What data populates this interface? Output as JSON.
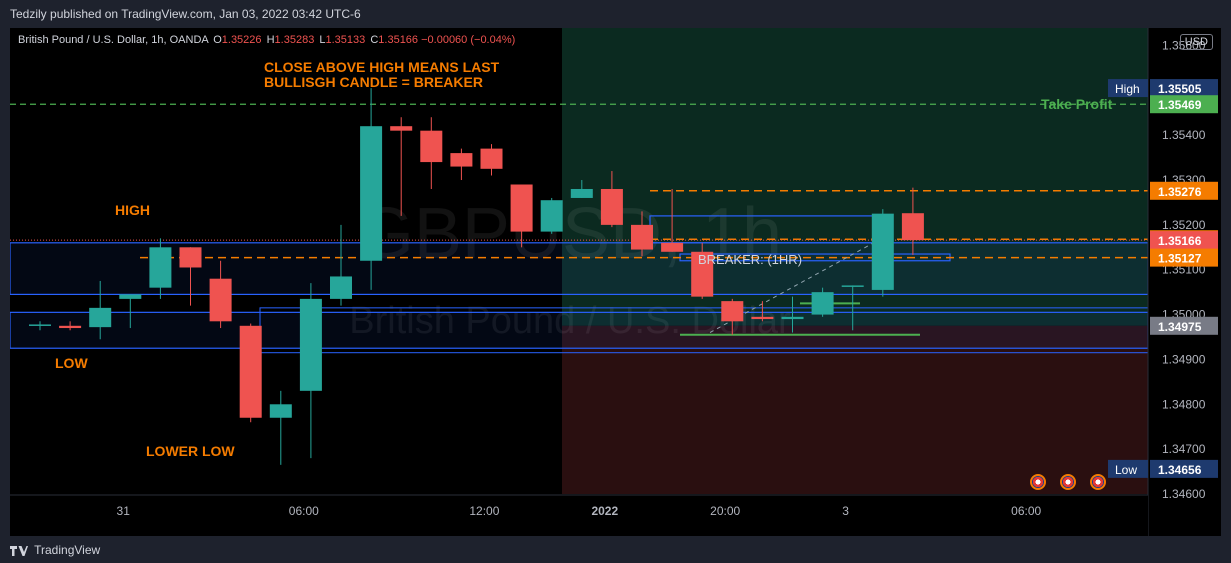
{
  "header": {
    "published": "Tedzily published on TradingView.com, Jan 03, 2022 03:42 UTC-6"
  },
  "legend": {
    "symbol": "British Pound / U.S. Dollar, 1h, OANDA",
    "o_label": "O",
    "o": "1.35226",
    "h_label": "H",
    "h": "1.35283",
    "l_label": "L",
    "l": "1.35133",
    "c_label": "C",
    "c": "1.35166",
    "change": "−0.00060 (−0.04%)"
  },
  "currency_badge": "USD",
  "footer": {
    "brand": "TradingView"
  },
  "colors": {
    "up": "#26a69a",
    "down": "#ef5350",
    "orange": "#f57c00",
    "blue_zone": "#2962ff",
    "green_line": "#4caf50"
  },
  "chart_data": {
    "type": "candlestick",
    "ylim": [
      1.346,
      1.3563
    ],
    "y_ticks": [
      "1.34600",
      "1.34700",
      "1.34800",
      "1.34900",
      "1.35000",
      "1.35100",
      "1.35200",
      "1.35300",
      "1.35400",
      "1.35500",
      "1.35600"
    ],
    "x_ticks": [
      {
        "label": "31",
        "index": 2
      },
      {
        "label": "06:00",
        "index": 8
      },
      {
        "label": "12:00",
        "index": 14
      },
      {
        "label": "2022",
        "index": 18
      },
      {
        "label": "20:00",
        "index": 22
      },
      {
        "label": "3",
        "index": 26
      },
      {
        "label": "06:00",
        "index": 32
      }
    ],
    "candles": [
      {
        "o": 1.34975,
        "h": 1.34985,
        "l": 1.34965,
        "c": 1.34978
      },
      {
        "o": 1.34975,
        "h": 1.34985,
        "l": 1.34965,
        "c": 1.3497
      },
      {
        "o": 1.34972,
        "h": 1.35075,
        "l": 1.34945,
        "c": 1.35015
      },
      {
        "o": 1.35035,
        "h": 1.35045,
        "l": 1.3497,
        "c": 1.35045
      },
      {
        "o": 1.3506,
        "h": 1.3517,
        "l": 1.35035,
        "c": 1.3515
      },
      {
        "o": 1.3515,
        "h": 1.3515,
        "l": 1.3502,
        "c": 1.35105
      },
      {
        "o": 1.3508,
        "h": 1.3512,
        "l": 1.3497,
        "c": 1.34985
      },
      {
        "o": 1.34975,
        "h": 1.3498,
        "l": 1.3476,
        "c": 1.3477
      },
      {
        "o": 1.3477,
        "h": 1.3483,
        "l": 1.34665,
        "c": 1.348
      },
      {
        "o": 1.3483,
        "h": 1.3507,
        "l": 1.3468,
        "c": 1.35035
      },
      {
        "o": 1.35035,
        "h": 1.352,
        "l": 1.3502,
        "c": 1.35085
      },
      {
        "o": 1.3512,
        "h": 1.35505,
        "l": 1.35055,
        "c": 1.3542
      },
      {
        "o": 1.3542,
        "h": 1.3544,
        "l": 1.3522,
        "c": 1.3541
      },
      {
        "o": 1.3541,
        "h": 1.3544,
        "l": 1.3528,
        "c": 1.3534
      },
      {
        "o": 1.3536,
        "h": 1.3537,
        "l": 1.353,
        "c": 1.3533
      },
      {
        "o": 1.3537,
        "h": 1.3538,
        "l": 1.3531,
        "c": 1.35325
      },
      {
        "o": 1.3529,
        "h": 1.3529,
        "l": 1.3515,
        "c": 1.35185
      },
      {
        "o": 1.35185,
        "h": 1.3526,
        "l": 1.3518,
        "c": 1.35255
      },
      {
        "o": 1.3526,
        "h": 1.353,
        "l": 1.3526,
        "c": 1.3528
      },
      {
        "o": 1.3528,
        "h": 1.3532,
        "l": 1.35195,
        "c": 1.352
      },
      {
        "o": 1.352,
        "h": 1.3523,
        "l": 1.3513,
        "c": 1.35145
      },
      {
        "o": 1.3516,
        "h": 1.3528,
        "l": 1.3514,
        "c": 1.3514
      },
      {
        "o": 1.3514,
        "h": 1.3516,
        "l": 1.35035,
        "c": 1.3504
      },
      {
        "o": 1.3503,
        "h": 1.35035,
        "l": 1.34955,
        "c": 1.34985
      },
      {
        "o": 1.34995,
        "h": 1.3503,
        "l": 1.34985,
        "c": 1.3499
      },
      {
        "o": 1.3499,
        "h": 1.3504,
        "l": 1.3496,
        "c": 1.34995
      },
      {
        "o": 1.35,
        "h": 1.3506,
        "l": 1.34995,
        "c": 1.3505
      },
      {
        "o": 1.35065,
        "h": 1.35065,
        "l": 1.34965,
        "c": 1.35065
      },
      {
        "o": 1.35055,
        "h": 1.35235,
        "l": 1.3504,
        "c": 1.35225
      },
      {
        "o": 1.35226,
        "h": 1.35283,
        "l": 1.35133,
        "c": 1.35166
      }
    ],
    "levels": [
      {
        "label": "High",
        "value": "1.35505",
        "price": 1.35505,
        "style": "top-badge"
      },
      {
        "label": "Take Profit",
        "value": "1.35469",
        "price": 1.35469,
        "style": "green-dashed"
      },
      {
        "value": "1.35276",
        "price": 1.35276,
        "style": "orange-dashed"
      },
      {
        "value": "1.35168",
        "price": 1.35168,
        "style": "orange"
      },
      {
        "value": "1.35166",
        "price": 1.35166,
        "style": "last-price"
      },
      {
        "value": "1.35127",
        "price": 1.35127,
        "style": "orange-dashed"
      },
      {
        "value": "1.34975",
        "price": 1.34975,
        "style": "gray"
      },
      {
        "label": "Low",
        "value": "1.34656",
        "price": 1.34656,
        "style": "bottom-badge"
      }
    ],
    "annotations": {
      "high": "HIGH",
      "low": "LOW",
      "lower_low": "LOWER LOW",
      "breaker_note_1": "CLOSE ABOVE HIGH MEANS LAST",
      "breaker_note_2": "BULLISGH CANDLE = BREAKER",
      "breaker_box": "BREAKER: (1HR)"
    },
    "watermark": {
      "symbol": "GBPUSD, 1h",
      "name": "British Pound / U.S. Dollar"
    }
  }
}
